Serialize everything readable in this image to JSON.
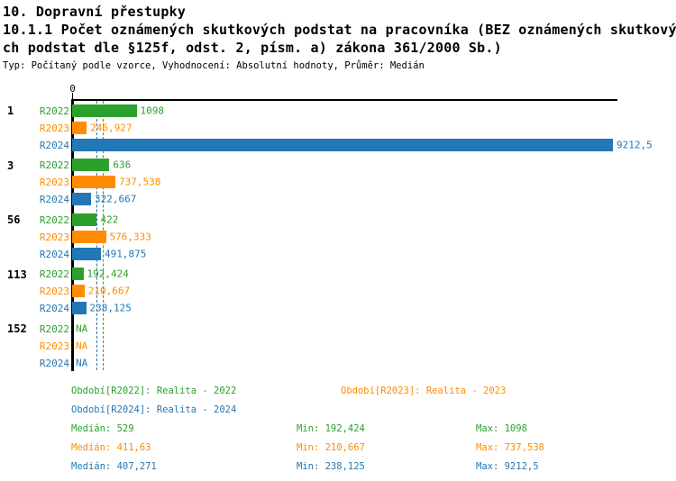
{
  "header": {
    "title_line1": "10. Dopravní přestupky",
    "title_line2": "10.1.1 Počet oznámených skutkových podstat na pracovníka (BEZ oznámených skutkový",
    "title_line3": "ch podstat dle §125f, odst. 2, písm. a) zákona 361/2000 Sb.)",
    "meta": "Typ: Počítaný podle vzorce, Vyhodnocení: Absolutní hodnoty, Průměr: Medián"
  },
  "colors": {
    "series_r2022": "#2ca02c",
    "series_r2023": "#ff8c00",
    "series_r2024": "#2377b4",
    "axis": "#000000",
    "background": "#ffffff"
  },
  "chart_data": {
    "type": "bar",
    "orientation": "horizontal",
    "title": "10.1.1 Počet oznámených skutkových podstat na pracovníka (BEZ oznámených skutkových podstat dle §125f, odst. 2, písm. a) zákona 361/2000 Sb.)",
    "xlabel": "",
    "ylabel": "",
    "xlim": [
      0,
      9212.5
    ],
    "axis_origin_label": "0",
    "grid": false,
    "series_labels": [
      "R2022",
      "R2023",
      "R2024"
    ],
    "na_text": "NA",
    "groups": [
      {
        "label": "1",
        "values": [
          1098,
          246.927,
          9212.5
        ],
        "display": [
          "1098",
          "246,927",
          "9212,5"
        ]
      },
      {
        "label": "3",
        "values": [
          636,
          737.538,
          322.667
        ],
        "display": [
          "636",
          "737,538",
          "322,667"
        ]
      },
      {
        "label": "56",
        "values": [
          422,
          576.333,
          491.875
        ],
        "display": [
          "422",
          "576,333",
          "491,875"
        ]
      },
      {
        "label": "113",
        "values": [
          192.424,
          210.667,
          238.125
        ],
        "display": [
          "192,424",
          "210,667",
          "238,125"
        ]
      },
      {
        "label": "152",
        "values": [
          null,
          null,
          null
        ],
        "display": [
          "NA",
          "NA",
          "NA"
        ]
      }
    ],
    "median_lines": [
      {
        "series": "R2023",
        "value": 411.63,
        "color": "#ff8c00"
      },
      {
        "series": "R2024",
        "value": 407.271,
        "color": "#2377b4"
      },
      {
        "series": "R2022",
        "value": 529,
        "color": "#2ca02c"
      }
    ]
  },
  "legend": {
    "periods": [
      {
        "label": "Období[R2022]: Realita - 2022",
        "color": "#2ca02c"
      },
      {
        "label": "Období[R2023]: Realita - 2023",
        "color": "#ff8c00"
      },
      {
        "label": "Období[R2024]: Realita - 2024",
        "color": "#2377b4"
      }
    ],
    "stats": [
      {
        "median": "Medián: 529",
        "min": "Min: 192,424",
        "max": "Max: 1098",
        "color": "#2ca02c"
      },
      {
        "median": "Medián: 411,63",
        "min": "Min: 210,667",
        "max": "Max: 737,538",
        "color": "#ff8c00"
      },
      {
        "median": "Medián: 407,271",
        "min": "Min: 238,125",
        "max": "Max: 9212,5",
        "color": "#2377b4"
      }
    ]
  }
}
